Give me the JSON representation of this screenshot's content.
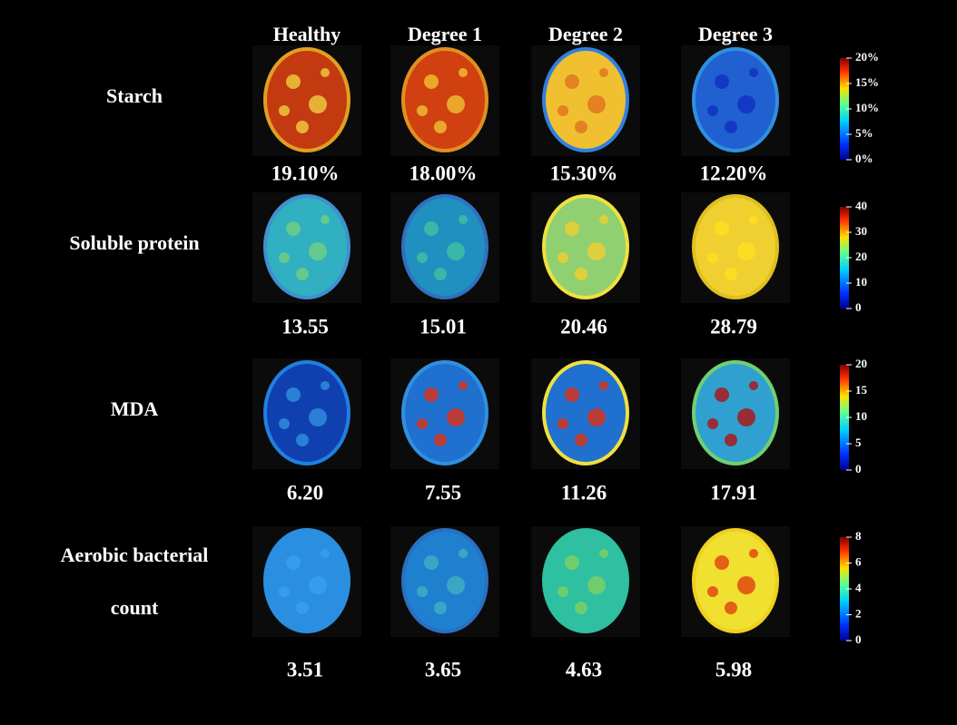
{
  "columns": [
    "Healthy",
    "Degree 1",
    "Degree 2",
    "Degree 3"
  ],
  "rows": [
    {
      "label": [
        "Starch"
      ],
      "values": [
        "19.10%",
        "18.00%",
        "15.30%",
        "12.20%"
      ],
      "colorbar": [
        "20%",
        "15%",
        "10%",
        "5%",
        "0%"
      ]
    },
    {
      "label": [
        "Soluble protein"
      ],
      "values": [
        "13.55",
        "15.01",
        "20.46",
        "28.79"
      ],
      "colorbar": [
        "40",
        "30",
        "20",
        "10",
        "0"
      ]
    },
    {
      "label": [
        "MDA"
      ],
      "values": [
        "6.20",
        "7.55",
        "11.26",
        "17.91"
      ],
      "colorbar": [
        "20",
        "15",
        "10",
        "5",
        "0"
      ]
    },
    {
      "label": [
        "Aerobic bacterial",
        "count"
      ],
      "values": [
        "3.51",
        "3.65",
        "4.63",
        "5.98"
      ],
      "colorbar": [
        "8",
        "6",
        "4",
        "2",
        "0"
      ]
    }
  ]
}
